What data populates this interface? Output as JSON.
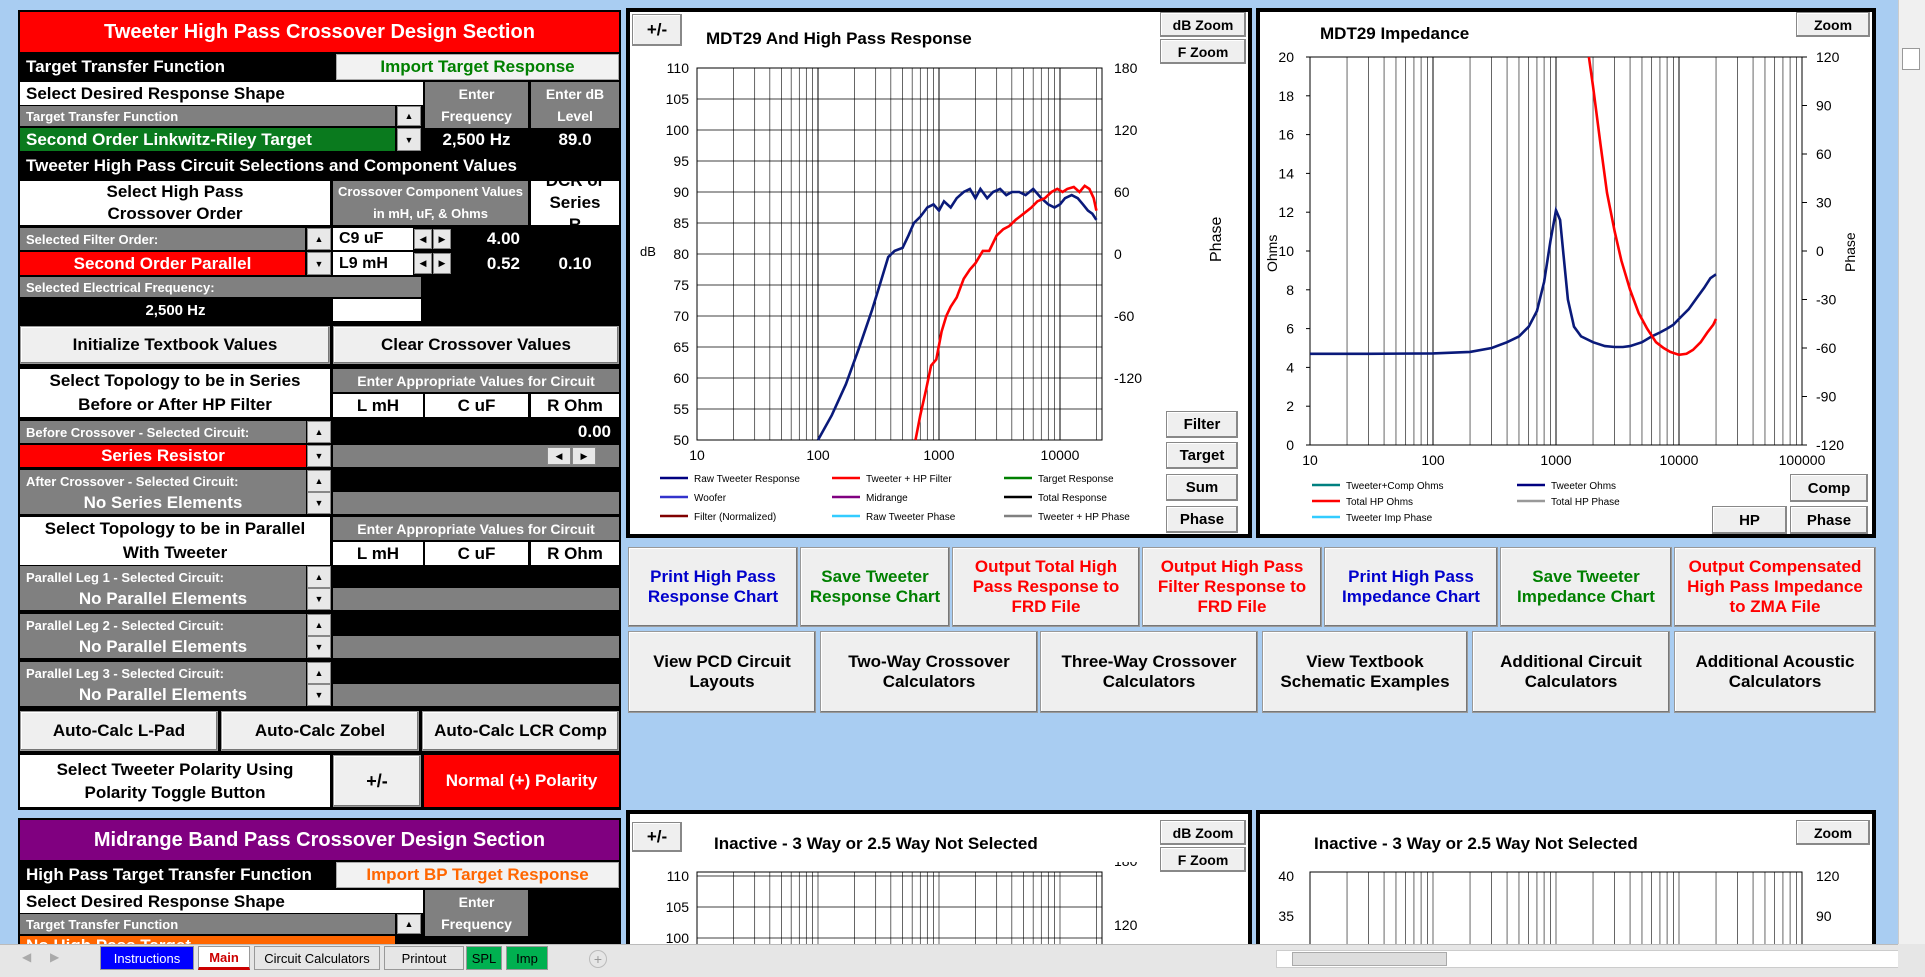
{
  "tweeter": {
    "section_title": "Tweeter High Pass Crossover Design Section",
    "target_transfer_label": "Target Transfer Function",
    "import_target_btn": "Import Target Response",
    "select_shape_label": "Select Desired Response Shape",
    "enter_frequency_label": "Enter Frequency",
    "enter_db_label": "Enter dB Level",
    "ttf_small_label": "Target Transfer Function",
    "target_shape": "Second Order Linkwitz-Riley Target",
    "frequency": "2,500 Hz",
    "db_level": "89.0",
    "circuit_header": "Tweeter High Pass Circuit Selections and Component Values",
    "select_hp_order": "Select High Pass Crossover Order",
    "component_values_label": "Crossover Component Values in mH, uF, & Ohms",
    "dcr_label": "DCR or Series R",
    "selected_filter_order_label": "Selected Filter Order:",
    "filter_order": "Second Order Parallel",
    "component1_name": "C9  uF",
    "component1_value": "4.00",
    "component2_name": "L9 mH",
    "component2_value": "0.52",
    "component2_dcr": "0.10",
    "selected_freq_label": "Selected Electrical Frequency:",
    "selected_freq": "2,500 Hz",
    "init_btn": "Initialize Textbook Values",
    "clear_btn": "Clear Crossover Values",
    "series_topology_label": "Select Topology to be in Series Before or After HP Filter",
    "enter_values_label": "Enter Appropriate Values for Circuit",
    "col_l": "L mH",
    "col_c": "C uF",
    "col_r": "R Ohm",
    "before_label": "Before Crossover - Selected Circuit:",
    "before_circuit": "Series Resistor",
    "before_r_value": "0.00",
    "after_label": "After Crossover - Selected Circuit:",
    "after_circuit": "No Series Elements",
    "parallel_topology_label": "Select Topology to be in Parallel With Tweeter",
    "enter_values_label2": "Enter Appropriate Values for Circuit",
    "leg1_label": "Parallel Leg 1 - Selected Circuit:",
    "leg1_value": "No Parallel Elements",
    "leg2_label": "Parallel Leg 2 - Selected Circuit:",
    "leg2_value": "No Parallel Elements",
    "leg3_label": "Parallel Leg 3 - Selected Circuit:",
    "leg3_value": "No Parallel Elements",
    "autocalc_lpad": "Auto-Calc L-Pad",
    "autocalc_zobel": "Auto-Calc Zobel",
    "autocalc_lcr": "Auto-Calc LCR Comp",
    "polarity_label": "Select Tweeter Polarity Using Polarity Toggle Button",
    "polarity_toggle": "+/-",
    "polarity_value": "Normal (+) Polarity"
  },
  "response_chart": {
    "polarity_btn": "+/-",
    "title": "MDT29  And High Pass Response",
    "db_zoom": "dB Zoom",
    "f_zoom": "F Zoom",
    "ylabel": "dB",
    "y2label": "Phase",
    "y_ticks": [
      "110",
      "105",
      "100",
      "95",
      "90",
      "85",
      "80",
      "75",
      "70",
      "65",
      "60",
      "55",
      "50"
    ],
    "y2_ticks": [
      "180",
      "120",
      "60",
      "0",
      "-60",
      "-120"
    ],
    "x_ticks": [
      "10",
      "100",
      "1000",
      "10000"
    ],
    "side_buttons": [
      "Filter",
      "Target",
      "Sum",
      "Phase"
    ],
    "legend": [
      {
        "label": "Raw Tweeter Response",
        "color": "#000080"
      },
      {
        "label": "Tweeter + HP Filter",
        "color": "#ff0000"
      },
      {
        "label": "Target Response",
        "color": "#008000"
      },
      {
        "label": "Woofer",
        "color": "#3333cc"
      },
      {
        "label": "Midrange",
        "color": "#800080"
      },
      {
        "label": "Total Response",
        "color": "#000000"
      },
      {
        "label": "Filter (Normalized)",
        "color": "#800000"
      },
      {
        "label": "Raw Tweeter Phase",
        "color": "#33ccff"
      },
      {
        "label": "Tweeter + HP Phase",
        "color": "#808080"
      }
    ]
  },
  "impedance_chart": {
    "title": "MDT29  Impedance",
    "zoom": "Zoom",
    "ylabel": "Ohms",
    "y2label": "Phase",
    "y_ticks": [
      "20",
      "18",
      "16",
      "14",
      "12",
      "10",
      "8",
      "6",
      "4",
      "2",
      "0"
    ],
    "y2_ticks": [
      "120",
      "90",
      "60",
      "30",
      "0",
      "-30",
      "-60",
      "-90",
      "-120"
    ],
    "x_ticks": [
      "10",
      "100",
      "1000",
      "10000",
      "100000"
    ],
    "comp_btn": "Comp",
    "hp_btn": "HP",
    "phase_btn": "Phase",
    "legend": [
      {
        "label": "Tweeter+Comp Ohms",
        "color": "#008080"
      },
      {
        "label": "Tweeter Ohms",
        "color": "#000080"
      },
      {
        "label": "Total HP Ohms",
        "color": "#ff0000"
      },
      {
        "label": "Total HP Phase",
        "color": "#999999"
      },
      {
        "label": "Tweeter Imp Phase",
        "color": "#33ccff"
      }
    ]
  },
  "action_buttons_row1": [
    {
      "label": "Print High Pass Response Chart",
      "color": "#0000cc"
    },
    {
      "label": "Save Tweeter Response Chart",
      "color": "#008000"
    },
    {
      "label": "Output Total High Pass Response to FRD File",
      "color": "#ff0000"
    },
    {
      "label": "Output High Pass Filter Response to FRD File",
      "color": "#ff0000"
    },
    {
      "label": "Print High Pass Impedance Chart",
      "color": "#0000cc"
    },
    {
      "label": "Save Tweeter Impedance Chart",
      "color": "#008000"
    },
    {
      "label": "Output Compensated High Pass Impedance to ZMA File",
      "color": "#ff0000"
    }
  ],
  "action_buttons_row2": [
    "View PCD Circuit Layouts",
    "Two-Way Crossover Calculators",
    "Three-Way Crossover Calculators",
    "View Textbook Schematic Examples",
    "Additional Circuit Calculators",
    "Additional Acoustic Calculators"
  ],
  "midrange": {
    "section_title": "Midrange Band Pass Crossover Design Section",
    "hp_target_label": "High Pass Target Transfer Function",
    "import_bp_btn": "Import BP Target Response",
    "select_shape_label": "Select Desired Response Shape",
    "enter_frequency_label": "Enter Frequency",
    "ttf_small_label": "Target Transfer Function",
    "target_shape": "No High Pass Target"
  },
  "mid_response_chart": {
    "polarity_btn": "+/-",
    "title": "Inactive - 3 Way or 2.5 Way Not Selected",
    "db_zoom": "dB Zoom",
    "f_zoom": "F Zoom",
    "y_ticks": [
      "110",
      "105",
      "100"
    ],
    "y2_ticks": [
      "180",
      "120"
    ]
  },
  "mid_impedance_chart": {
    "title": "Inactive - 3 Way or 2.5 Way Not Selected",
    "zoom": "Zoom",
    "y_ticks": [
      "40",
      "35"
    ],
    "y2_ticks": [
      "120",
      "90"
    ]
  },
  "sheet_tabs": [
    {
      "label": "Instructions",
      "bg": "#0000ff",
      "fg": "#ffffff"
    },
    {
      "label": "Main",
      "bg": "#ffffff",
      "fg": "#cc0000"
    },
    {
      "label": "Circuit Calculators",
      "bg": "#e6e6e6",
      "fg": "#000000"
    },
    {
      "label": "Printout",
      "bg": "#e6e6e6",
      "fg": "#000000"
    },
    {
      "label": "SPL",
      "bg": "#00b050",
      "fg": "#000000"
    },
    {
      "label": "Imp",
      "bg": "#00b050",
      "fg": "#000000"
    }
  ]
}
